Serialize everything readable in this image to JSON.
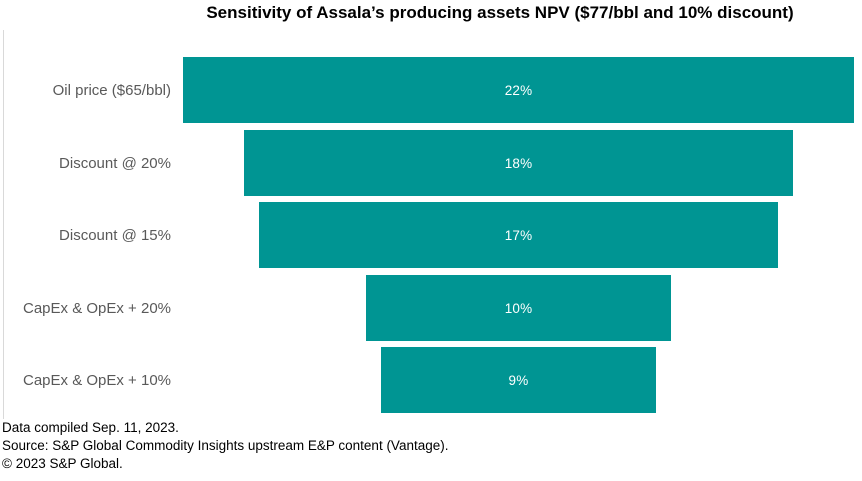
{
  "title": "Sensitivity of Assala’s producing assets NPV ($77/bbl and 10% discount)",
  "chart_data": {
    "type": "bar",
    "subtype": "horizontal-centered-funnel",
    "title": "Sensitivity of Assala’s producing assets NPV ($77/bbl and 10% discount)",
    "categories": [
      "Oil price ($65/bbl)",
      "Discount @ 20%",
      "Discount @ 15%",
      "CapEx & OpEx + 20%",
      "CapEx & OpEx + 10%"
    ],
    "values": [
      22,
      18,
      17,
      10,
      9
    ],
    "value_labels": [
      "22%",
      "18%",
      "17%",
      "10%",
      "9%"
    ],
    "unit": "%",
    "xlim": [
      0,
      22
    ],
    "grid": "off",
    "legend": "none",
    "bar_color": "#009593",
    "category_label_color": "#595959",
    "value_label_color": "#ffffff",
    "axis_line_color": "#d9d9d9"
  },
  "footer": {
    "line1": "Data compiled Sep. 11, 2023.",
    "line2": "Source: S&P Global Commodity Insights upstream E&P content (Vantage).",
    "line3": "© 2023 S&P Global."
  }
}
